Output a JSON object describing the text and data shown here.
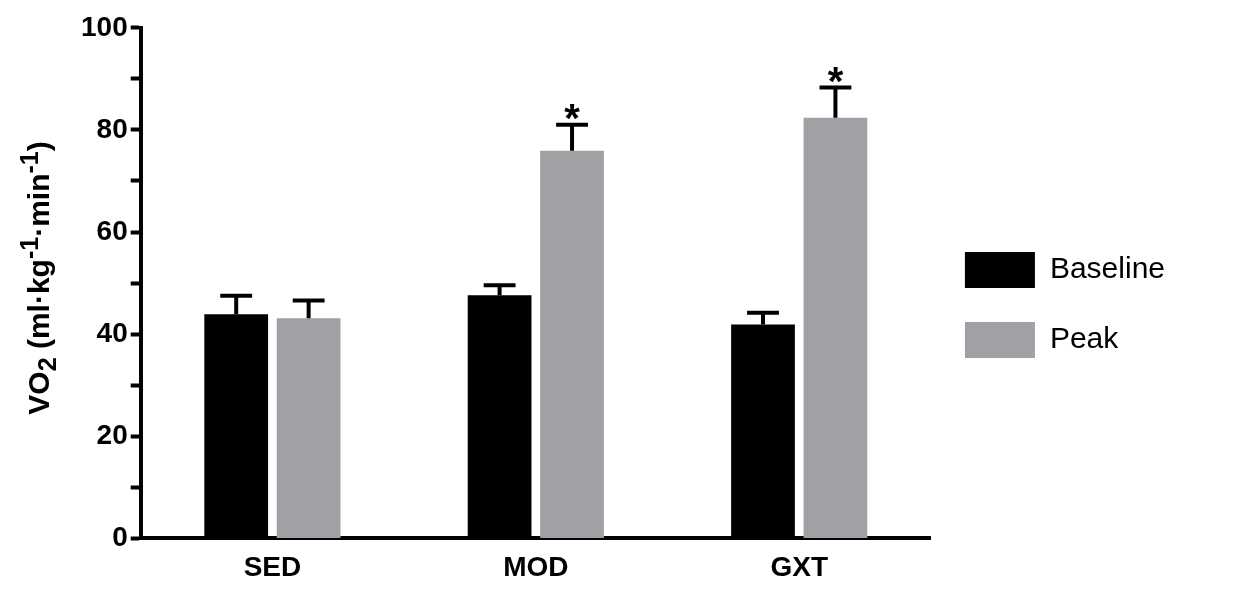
{
  "chart_data": {
    "type": "bar",
    "ylabel": "VO$_{2}$ (ml·kg$^{-1}$·min$^{-1}$)",
    "categories": [
      "SED",
      "MOD",
      "GXT"
    ],
    "series": [
      {
        "name": "Baseline",
        "color": "#000000",
        "values": [
          43.9,
          47.6,
          41.9
        ],
        "errors": [
          [
            43.9,
            47.5
          ],
          [
            47.6,
            49.6
          ],
          [
            41.9,
            44.2
          ]
        ]
      },
      {
        "name": "Peak",
        "color": "#a0a0a5",
        "values": [
          43.1,
          75.9,
          82.4
        ],
        "errors": [
          [
            43.1,
            46.6
          ],
          [
            75.9,
            81
          ],
          [
            82.4,
            88.3
          ]
        ]
      }
    ],
    "ylim": [
      0,
      100
    ],
    "yticks": [
      0,
      {
        "value": 10,
        "label": null
      },
      20,
      {
        "value": 30,
        "label": null
      },
      40,
      {
        "value": 50,
        "label": null
      },
      60,
      {
        "value": 70,
        "label": null
      },
      80,
      {
        "value": 90,
        "label": null
      },
      100
    ],
    "annotations": [
      "*",
      "*"
    ],
    "legend": "right",
    "grid": false
  }
}
